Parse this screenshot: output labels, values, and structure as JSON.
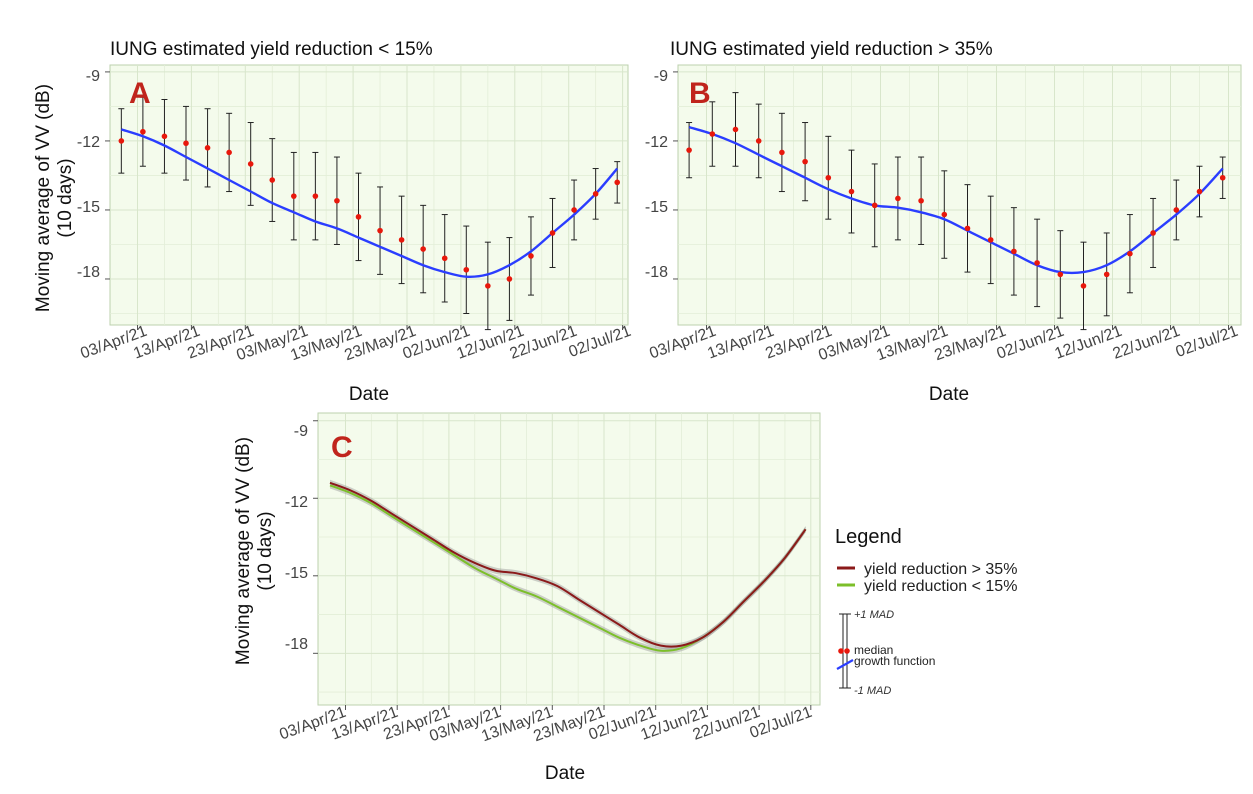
{
  "figure": {
    "panels": [
      {
        "id": "A",
        "letter": "A",
        "title": "IUNG estimated yield reduction < 15%",
        "xlabel": "Date",
        "ylabel_line1": "Moving average of VV (dB)",
        "ylabel_line2": "(10 days)",
        "y_ticks": [
          "-9",
          "-12",
          "-15",
          "-18"
        ],
        "x_ticks": [
          "03/Apr/21",
          "13/Apr/21",
          "23/Apr/21",
          "03/May/21",
          "13/May/21",
          "23/May/21",
          "02/Jun/21",
          "12/Jun/21",
          "22/Jun/21",
          "02/Jul/21"
        ]
      },
      {
        "id": "B",
        "letter": "B",
        "title": "IUNG estimated yield reduction > 35%",
        "xlabel": "Date",
        "ylabel_line1": "Moving average of VV (dB)",
        "ylabel_line2": "(10 days)",
        "y_ticks": [
          "-9",
          "-12",
          "-15",
          "-18"
        ],
        "x_ticks": [
          "03/Apr/21",
          "13/Apr/21",
          "23/Apr/21",
          "03/May/21",
          "13/May/21",
          "23/May/21",
          "02/Jun/21",
          "12/Jun/21",
          "22/Jun/21",
          "02/Jul/21"
        ]
      },
      {
        "id": "C",
        "letter": "C",
        "title": "",
        "xlabel": "Date",
        "ylabel_line1": "Moving average of VV (dB)",
        "ylabel_line2": "(10 days)",
        "y_ticks": [
          "-9",
          "-12",
          "-15",
          "-18"
        ],
        "x_ticks": [
          "03/Apr/21",
          "13/Apr/21",
          "23/Apr/21",
          "03/May/21",
          "13/May/21",
          "23/May/21",
          "02/Jun/21",
          "12/Jun/21",
          "22/Jun/21",
          "02/Jul/21"
        ]
      }
    ],
    "legend": {
      "title": "Legend",
      "items": [
        {
          "label": "yield reduction > 35%",
          "color": "#8b1a1a"
        },
        {
          "label": "yield reduction < 15%",
          "color": "#7cbf2a"
        }
      ],
      "key_top": "+1 MAD",
      "key_median": "median",
      "key_growth": "growth function",
      "key_bottom": "-1 MAD"
    }
  },
  "chart_data": [
    {
      "panel": "A",
      "type": "scatter",
      "x_axis": "date",
      "ylim": [
        -20,
        -8.7
      ],
      "x": [
        "2021-03-31",
        "2021-04-04",
        "2021-04-08",
        "2021-04-12",
        "2021-04-16",
        "2021-04-20",
        "2021-04-24",
        "2021-04-28",
        "2021-05-02",
        "2021-05-06",
        "2021-05-10",
        "2021-05-14",
        "2021-05-18",
        "2021-05-22",
        "2021-05-26",
        "2021-05-30",
        "2021-06-03",
        "2021-06-07",
        "2021-06-11",
        "2021-06-15",
        "2021-06-19",
        "2021-06-23",
        "2021-06-27",
        "2021-07-01"
      ],
      "series": [
        {
          "name": "median",
          "values": [
            -12.0,
            -11.6,
            -11.8,
            -12.1,
            -12.3,
            -12.5,
            -13.0,
            -13.7,
            -14.4,
            -14.4,
            -14.6,
            -15.3,
            -15.9,
            -16.3,
            -16.7,
            -17.1,
            -17.6,
            -18.3,
            -18.0,
            -17.0,
            -16.0,
            -15.0,
            -14.3,
            -13.8
          ]
        },
        {
          "name": "mad",
          "values": [
            1.4,
            1.5,
            1.6,
            1.6,
            1.7,
            1.7,
            1.8,
            1.8,
            1.9,
            1.9,
            1.9,
            1.9,
            1.9,
            1.9,
            1.9,
            1.9,
            1.9,
            1.9,
            1.8,
            1.7,
            1.5,
            1.3,
            1.1,
            0.9
          ]
        },
        {
          "name": "growth function",
          "values": [
            -11.5,
            -11.8,
            -12.2,
            -12.7,
            -13.2,
            -13.7,
            -14.2,
            -14.7,
            -15.1,
            -15.5,
            -15.8,
            -16.2,
            -16.6,
            -17.0,
            -17.4,
            -17.7,
            -17.9,
            -17.8,
            -17.4,
            -16.8,
            -16.0,
            -15.2,
            -14.3,
            -13.2
          ]
        }
      ]
    },
    {
      "panel": "B",
      "type": "scatter",
      "x_axis": "date",
      "ylim": [
        -20,
        -8.7
      ],
      "x": [
        "2021-03-31",
        "2021-04-04",
        "2021-04-08",
        "2021-04-12",
        "2021-04-16",
        "2021-04-20",
        "2021-04-24",
        "2021-04-28",
        "2021-05-02",
        "2021-05-06",
        "2021-05-10",
        "2021-05-14",
        "2021-05-18",
        "2021-05-22",
        "2021-05-26",
        "2021-05-30",
        "2021-06-03",
        "2021-06-07",
        "2021-06-11",
        "2021-06-15",
        "2021-06-19",
        "2021-06-23",
        "2021-06-27",
        "2021-07-01"
      ],
      "series": [
        {
          "name": "median",
          "values": [
            -12.4,
            -11.7,
            -11.5,
            -12.0,
            -12.5,
            -12.9,
            -13.6,
            -14.2,
            -14.8,
            -14.5,
            -14.6,
            -15.2,
            -15.8,
            -16.3,
            -16.8,
            -17.3,
            -17.8,
            -18.3,
            -17.8,
            -16.9,
            -16.0,
            -15.0,
            -14.2,
            -13.6
          ]
        },
        {
          "name": "mad",
          "values": [
            1.2,
            1.4,
            1.6,
            1.6,
            1.7,
            1.7,
            1.8,
            1.8,
            1.8,
            1.8,
            1.9,
            1.9,
            1.9,
            1.9,
            1.9,
            1.9,
            1.9,
            1.9,
            1.8,
            1.7,
            1.5,
            1.3,
            1.1,
            0.9
          ]
        },
        {
          "name": "growth function",
          "values": [
            -11.4,
            -11.7,
            -12.1,
            -12.6,
            -13.1,
            -13.6,
            -14.1,
            -14.5,
            -14.8,
            -14.9,
            -15.1,
            -15.4,
            -15.9,
            -16.4,
            -16.9,
            -17.4,
            -17.7,
            -17.7,
            -17.4,
            -16.8,
            -16.0,
            -15.2,
            -14.3,
            -13.2
          ]
        }
      ]
    },
    {
      "panel": "C",
      "type": "line",
      "x_axis": "date",
      "ylim": [
        -20,
        -8.7
      ],
      "x": [
        "2021-03-31",
        "2021-04-04",
        "2021-04-08",
        "2021-04-12",
        "2021-04-16",
        "2021-04-20",
        "2021-04-24",
        "2021-04-28",
        "2021-05-02",
        "2021-05-06",
        "2021-05-10",
        "2021-05-14",
        "2021-05-18",
        "2021-05-22",
        "2021-05-26",
        "2021-05-30",
        "2021-06-03",
        "2021-06-07",
        "2021-06-11",
        "2021-06-15",
        "2021-06-19",
        "2021-06-23",
        "2021-06-27",
        "2021-07-01"
      ],
      "series": [
        {
          "name": "yield reduction > 35%",
          "values": [
            -11.4,
            -11.7,
            -12.1,
            -12.6,
            -13.1,
            -13.6,
            -14.1,
            -14.5,
            -14.8,
            -14.9,
            -15.1,
            -15.4,
            -15.9,
            -16.4,
            -16.9,
            -17.4,
            -17.7,
            -17.7,
            -17.4,
            -16.8,
            -16.0,
            -15.2,
            -14.3,
            -13.2
          ]
        },
        {
          "name": "yield reduction < 15%",
          "values": [
            -11.5,
            -11.8,
            -12.2,
            -12.7,
            -13.2,
            -13.7,
            -14.2,
            -14.7,
            -15.1,
            -15.5,
            -15.8,
            -16.2,
            -16.6,
            -17.0,
            -17.4,
            -17.7,
            -17.9,
            -17.8,
            -17.4,
            -16.8,
            -16.0,
            -15.2,
            -14.3,
            -13.2
          ]
        }
      ]
    }
  ]
}
